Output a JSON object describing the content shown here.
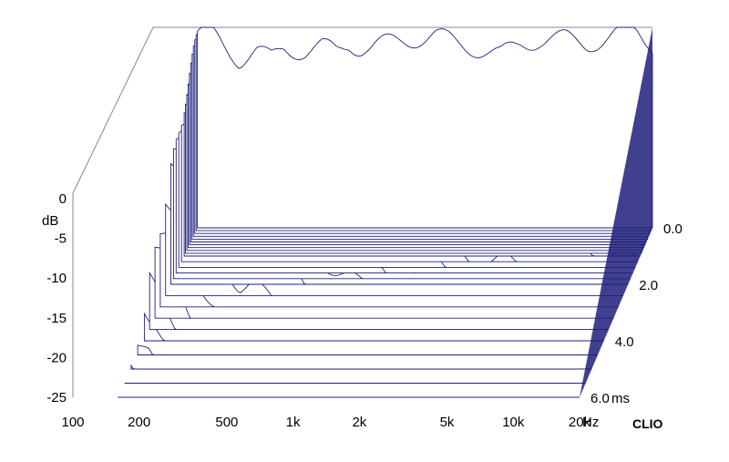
{
  "chart_data": {
    "type": "waterfall-3d",
    "brand": "CLIO",
    "line_color": "#1f1f7a",
    "y_axis": {
      "unit": "dB",
      "ylim": [
        -25,
        0
      ],
      "ticks": [
        "0",
        "-5",
        "-10",
        "-15",
        "-20",
        "-25"
      ]
    },
    "x_axis": {
      "unit": "Hz",
      "scale": "log",
      "xlim": [
        100,
        20000
      ],
      "ticks": [
        {
          "label": "100",
          "value": 100
        },
        {
          "label": "200",
          "value": 200
        },
        {
          "label": "500",
          "value": 500
        },
        {
          "label": "1k",
          "value": 1000
        },
        {
          "label": "2k",
          "value": 2000
        },
        {
          "label": "5k",
          "value": 5000
        },
        {
          "label": "10k",
          "value": 10000
        },
        {
          "label": "20k",
          "value": 20000
        }
      ]
    },
    "z_axis": {
      "unit": "ms",
      "zlim": [
        0,
        6
      ],
      "ticks": [
        {
          "label": "0.0",
          "value": 0
        },
        {
          "label": "2.0",
          "value": 2
        },
        {
          "label": "4.0",
          "value": 4
        },
        {
          "label": "6.0",
          "value": 6
        }
      ]
    },
    "slices_ms": [
      0,
      0.1,
      0.2,
      0.3,
      0.4,
      0.5,
      0.6,
      0.7,
      0.8,
      0.9,
      1.0,
      1.2,
      1.4,
      1.6,
      1.8,
      2.0,
      2.4,
      2.8,
      3.2,
      3.6,
      4.0,
      4.5,
      5.0,
      5.5,
      6.0
    ],
    "initial_response": {
      "freq_hz": [
        160,
        180,
        200,
        250,
        300,
        350,
        400,
        500,
        600,
        700,
        800,
        900,
        1000,
        1200,
        1500,
        2000,
        2500,
        3000,
        4000,
        5000,
        6000,
        8000,
        10000,
        12000,
        15000,
        17000,
        20000
      ],
      "level_db": [
        -1,
        -0.5,
        -1.5,
        -4,
        -3,
        -4,
        -2.5,
        -3,
        -2.5,
        -3,
        -2,
        -2.5,
        -2.5,
        -2,
        -1.5,
        -1,
        -2,
        -2.5,
        -3.5,
        -2,
        -1.5,
        -1.5,
        -2,
        -1.5,
        -0.5,
        -0.5,
        -2
      ]
    }
  }
}
